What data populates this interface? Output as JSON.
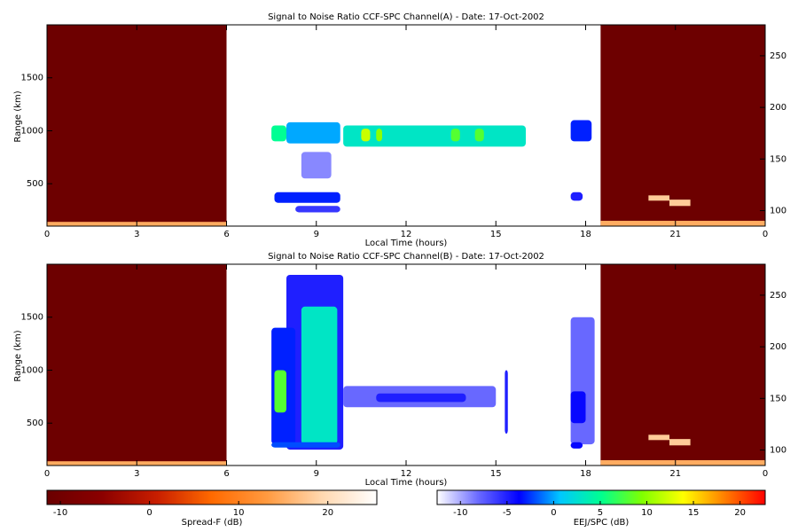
{
  "chart_data": [
    {
      "type": "heatmap",
      "title": "Signal to Noise Ratio CCF-SPC Channel(A) - Date: 17-Oct-2002",
      "x_label": "Local Time (hours)",
      "y_label": "Range (km)",
      "xlim": [
        0,
        24
      ],
      "xticks": [
        0,
        3,
        6,
        9,
        12,
        15,
        18,
        21,
        {
          "value": 24,
          "label": "0"
        }
      ],
      "ylim": [
        100,
        2000
      ],
      "yticks": [
        500,
        1000,
        1500
      ],
      "y2lim": [
        85,
        280
      ],
      "y2ticks": [
        100,
        150,
        200,
        250
      ],
      "regions": [
        {
          "x": [
            0,
            6
          ],
          "y": [
            100,
            2000
          ],
          "value": -11,
          "map": 0
        },
        {
          "x": [
            18.5,
            24
          ],
          "y": [
            100,
            2000
          ],
          "value": -11,
          "map": 0
        },
        {
          "x": [
            0,
            6
          ],
          "y": [
            100,
            140
          ],
          "value": 15,
          "map": 0
        },
        {
          "x": [
            18.5,
            24
          ],
          "y": [
            100,
            150
          ],
          "value": 15,
          "map": 0
        },
        {
          "x": [
            20.1,
            20.8
          ],
          "y": [
            340,
            390
          ],
          "value": 18,
          "map": 0
        },
        {
          "x": [
            20.8,
            21.5
          ],
          "y": [
            290,
            350
          ],
          "value": 18,
          "map": 0
        },
        {
          "x": [
            8.5,
            9.5
          ],
          "y": [
            550,
            800
          ],
          "value": -9,
          "map": 1
        },
        {
          "x": [
            7.5,
            8
          ],
          "y": [
            900,
            1050
          ],
          "value": 5,
          "map": 1
        },
        {
          "x": [
            8,
            9.8
          ],
          "y": [
            880,
            1080
          ],
          "value": 0,
          "map": 1
        },
        {
          "x": [
            9.9,
            16
          ],
          "y": [
            850,
            1050
          ],
          "value": 3,
          "map": 1
        },
        {
          "x": [
            10.5,
            10.8
          ],
          "y": [
            900,
            1020
          ],
          "value": 12,
          "map": 1
        },
        {
          "x": [
            11,
            11.2
          ],
          "y": [
            900,
            1020
          ],
          "value": 10,
          "map": 1
        },
        {
          "x": [
            13.5,
            13.8
          ],
          "y": [
            900,
            1020
          ],
          "value": 8,
          "map": 1
        },
        {
          "x": [
            14.3,
            14.6
          ],
          "y": [
            900,
            1020
          ],
          "value": 8,
          "map": 1
        },
        {
          "x": [
            7.6,
            9.8
          ],
          "y": [
            320,
            420
          ],
          "value": -3,
          "map": 1
        },
        {
          "x": [
            8.3,
            9.8
          ],
          "y": [
            230,
            290
          ],
          "value": -6,
          "map": 1
        },
        {
          "x": [
            17.5,
            18.2
          ],
          "y": [
            900,
            1100
          ],
          "value": -3,
          "map": 1
        },
        {
          "x": [
            17.5,
            17.9
          ],
          "y": [
            340,
            420
          ],
          "value": -5,
          "map": 1
        }
      ]
    },
    {
      "type": "heatmap",
      "title": "Signal to Noise Ratio CCF-SPC Channel(B) - Date: 17-Oct-2002",
      "x_label": "Local Time (hours)",
      "y_label": "Range (km)",
      "xlim": [
        0,
        24
      ],
      "xticks": [
        0,
        3,
        6,
        9,
        12,
        15,
        18,
        21,
        {
          "value": 24,
          "label": "0"
        }
      ],
      "ylim": [
        100,
        2000
      ],
      "yticks": [
        500,
        1000,
        1500
      ],
      "y2lim": [
        85,
        280
      ],
      "y2ticks": [
        100,
        150,
        200,
        250
      ],
      "regions": [
        {
          "x": [
            0,
            6
          ],
          "y": [
            100,
            2000
          ],
          "value": -11,
          "map": 0
        },
        {
          "x": [
            18.5,
            24
          ],
          "y": [
            100,
            2000
          ],
          "value": -11,
          "map": 0
        },
        {
          "x": [
            0,
            6
          ],
          "y": [
            100,
            140
          ],
          "value": 15,
          "map": 0
        },
        {
          "x": [
            18.5,
            24
          ],
          "y": [
            100,
            150
          ],
          "value": 15,
          "map": 0
        },
        {
          "x": [
            20.1,
            20.8
          ],
          "y": [
            340,
            390
          ],
          "value": 18,
          "map": 0
        },
        {
          "x": [
            20.8,
            21.5
          ],
          "y": [
            290,
            350
          ],
          "value": 18,
          "map": 0
        },
        {
          "x": [
            8,
            9.9
          ],
          "y": [
            250,
            1900
          ],
          "value": -5,
          "map": 1
        },
        {
          "x": [
            7.5,
            8.3
          ],
          "y": [
            300,
            1400
          ],
          "value": -3,
          "map": 1
        },
        {
          "x": [
            8.5,
            9.7
          ],
          "y": [
            300,
            1600
          ],
          "value": 3,
          "map": 1
        },
        {
          "x": [
            7.6,
            8
          ],
          "y": [
            600,
            1000
          ],
          "value": 8,
          "map": 1
        },
        {
          "x": [
            7.5,
            9.8
          ],
          "y": [
            270,
            320
          ],
          "value": -2,
          "map": 1
        },
        {
          "x": [
            9.9,
            15
          ],
          "y": [
            650,
            850
          ],
          "value": -8,
          "map": 1
        },
        {
          "x": [
            11,
            14
          ],
          "y": [
            700,
            780
          ],
          "value": -5,
          "map": 1
        },
        {
          "x": [
            15.3,
            15.4
          ],
          "y": [
            400,
            1000
          ],
          "value": -5,
          "map": 1
        },
        {
          "x": [
            17.5,
            18.3
          ],
          "y": [
            300,
            1500
          ],
          "value": -8,
          "map": 1
        },
        {
          "x": [
            17.5,
            18
          ],
          "y": [
            500,
            800
          ],
          "value": -4,
          "map": 1
        },
        {
          "x": [
            17.5,
            17.9
          ],
          "y": [
            260,
            320
          ],
          "value": -4,
          "map": 1
        }
      ]
    }
  ],
  "colorbars": [
    {
      "label": "Spread-F (dB)",
      "clim": [
        -11.5,
        25.5
      ],
      "ticks": [
        -10,
        0,
        10,
        20
      ],
      "colors": [
        "#6a0000",
        "#8b0000",
        "#c81e00",
        "#ff6a00",
        "#ff9a40",
        "#ffd8b0",
        "#ffffff"
      ]
    },
    {
      "label": "EEJ/SPC (dB)",
      "clim": [
        -12.5,
        22.7
      ],
      "ticks": [
        -10,
        -5,
        0,
        5,
        10,
        15,
        20
      ],
      "colors": [
        "#ffffff",
        "#6a6aff",
        "#0000ff",
        "#00c8ff",
        "#00ff90",
        "#80ff00",
        "#ffff00",
        "#ff8000",
        "#ff0000"
      ]
    }
  ]
}
